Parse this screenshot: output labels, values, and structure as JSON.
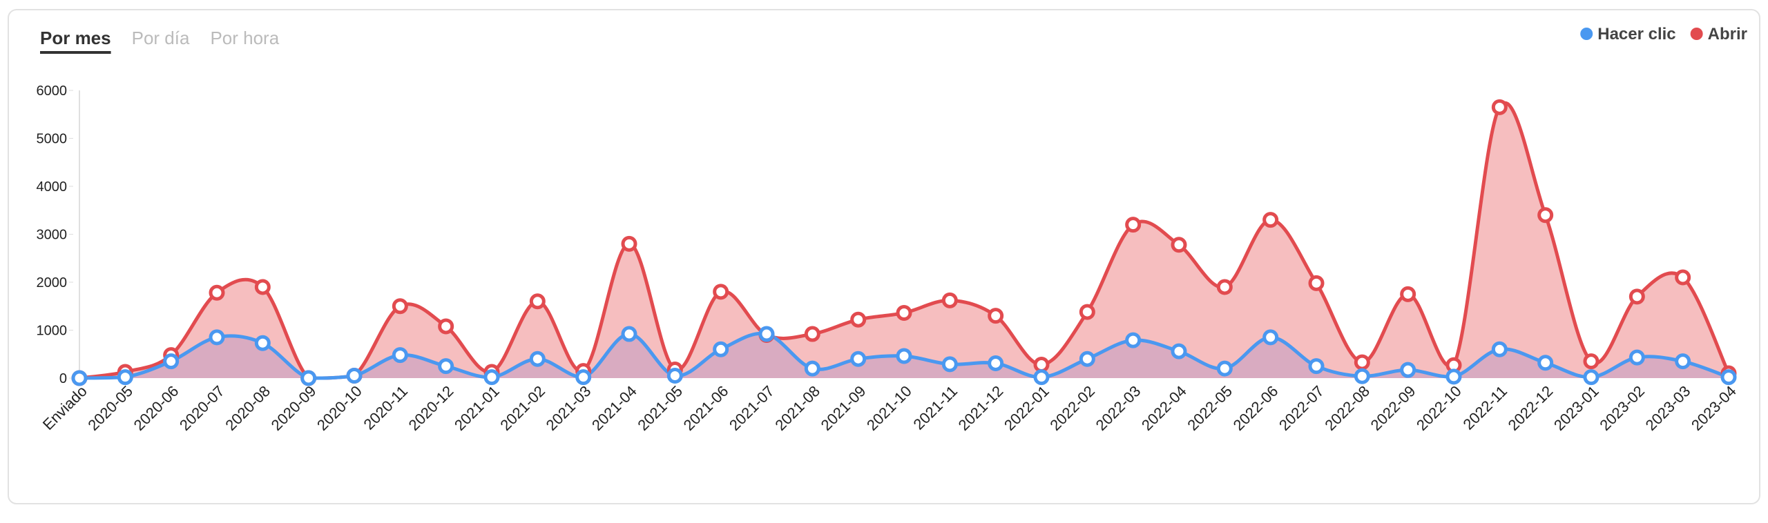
{
  "tabs": [
    "Por mes",
    "Por día",
    "Por hora"
  ],
  "chart_data": {
    "type": "line",
    "categories": [
      "Enviado",
      "2020-05",
      "2020-06",
      "2020-07",
      "2020-08",
      "2020-09",
      "2020-10",
      "2020-11",
      "2020-12",
      "2021-01",
      "2021-02",
      "2021-03",
      "2021-04",
      "2021-05",
      "2021-06",
      "2021-07",
      "2021-08",
      "2021-09",
      "2021-10",
      "2021-11",
      "2021-12",
      "2022-01",
      "2022-02",
      "2022-03",
      "2022-04",
      "2022-05",
      "2022-06",
      "2022-07",
      "2022-08",
      "2022-09",
      "2022-10",
      "2022-11",
      "2022-12",
      "2023-01",
      "2023-02",
      "2023-03",
      "2023-04"
    ],
    "series": [
      {
        "name": "Hacer clic",
        "color": "#4a98f0",
        "fill": "rgba(150,130,200,0.3)",
        "values": [
          0,
          20,
          350,
          850,
          730,
          0,
          50,
          480,
          250,
          20,
          400,
          20,
          920,
          50,
          600,
          920,
          200,
          400,
          460,
          290,
          310,
          20,
          400,
          790,
          560,
          200,
          850,
          250,
          40,
          170,
          30,
          600,
          320,
          20,
          430,
          350,
          20
        ]
      },
      {
        "name": "Abrir",
        "color": "#e24b4f",
        "fill": "rgba(236,110,112,0.45)",
        "values": [
          0,
          130,
          480,
          1780,
          1900,
          0,
          50,
          1500,
          1080,
          130,
          1600,
          150,
          2800,
          180,
          1800,
          900,
          920,
          1220,
          1360,
          1620,
          1300,
          280,
          1380,
          3200,
          2780,
          1900,
          3300,
          1980,
          330,
          1750,
          270,
          5650,
          3400,
          350,
          1700,
          2100,
          100
        ]
      }
    ],
    "ylim": [
      0,
      6000
    ],
    "yticks": [
      0,
      1000,
      2000,
      3000,
      4000,
      5000,
      6000
    ],
    "legend": "top-right"
  }
}
